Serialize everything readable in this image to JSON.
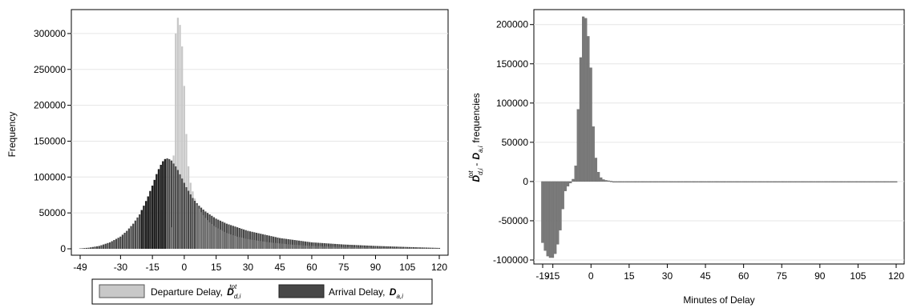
{
  "chart_data": [
    {
      "type": "bar",
      "subtype": "overlapping-histogram",
      "title": "",
      "xlabel": "",
      "ylabel": "Frequency",
      "xlim": [
        -49,
        120
      ],
      "ylim": [
        0,
        330000
      ],
      "x_ticks": [
        "-49",
        "-30",
        "-15",
        "0",
        "15",
        "30",
        "45",
        "60",
        "75",
        "90",
        "105",
        "120"
      ],
      "y_ticks": [
        "0",
        "50000",
        "100000",
        "150000",
        "200000",
        "250000",
        "300000"
      ],
      "grid": "horizontal",
      "legend_placement": "bottom",
      "series": [
        {
          "name": "Departure Delay, D",
          "symbol_base": "D",
          "symbol_sub": "d,i",
          "symbol_sup": "tot",
          "color": "#c8c8c8",
          "x": [
            -19,
            -18,
            -17,
            -16,
            -15,
            -14,
            -13,
            -12,
            -11,
            -10,
            -9,
            -8,
            -7,
            -6,
            -5,
            -4,
            -3,
            -2,
            -1,
            0,
            1,
            2,
            3,
            4,
            5,
            6,
            7,
            8,
            9,
            10,
            11,
            12,
            13,
            14,
            15,
            20,
            25,
            30,
            40,
            50,
            60,
            75,
            90,
            105,
            120
          ],
          "values": [
            0,
            0,
            0,
            0,
            0,
            0,
            0,
            0,
            0,
            0,
            0,
            0,
            0,
            30000,
            130000,
            300000,
            322000,
            312000,
            282000,
            227000,
            160000,
            115000,
            92000,
            80000,
            70000,
            62000,
            56000,
            51000,
            47000,
            43000,
            40000,
            37000,
            34500,
            32000,
            30000,
            22000,
            17000,
            13500,
            9000,
            6000,
            4000,
            2500,
            1500,
            800,
            300
          ]
        },
        {
          "name": "Arrival Delay, D",
          "symbol_base": "D",
          "symbol_sub": "a,i",
          "symbol_sup": "",
          "color": "#474747",
          "x": [
            -49,
            -45,
            -40,
            -35,
            -30,
            -27,
            -24,
            -21,
            -19,
            -17,
            -15,
            -14,
            -13,
            -12,
            -11,
            -10,
            -9,
            -8,
            -7,
            -6,
            -5,
            -4,
            -3,
            -2,
            -1,
            0,
            1,
            2,
            3,
            4,
            5,
            7,
            10,
            15,
            20,
            30,
            45,
            60,
            75,
            90,
            105,
            120
          ],
          "values": [
            500,
            1500,
            4000,
            9000,
            17000,
            25000,
            35000,
            48000,
            60000,
            73000,
            88000,
            96000,
            104000,
            111000,
            117000,
            122000,
            125000,
            126000,
            125000,
            123000,
            119000,
            115000,
            110000,
            104000,
            98000,
            92000,
            86000,
            81000,
            76000,
            71000,
            67000,
            60000,
            52000,
            42000,
            35000,
            25000,
            15000,
            9000,
            6000,
            4000,
            2500,
            1200
          ]
        }
      ]
    },
    {
      "type": "bar",
      "title": "",
      "xlabel": "Minutes of Delay",
      "ylabel": "frequencies",
      "ylabel_symbols": {
        "first": {
          "base": "D",
          "sub": "d,i",
          "sup": "tot"
        },
        "second": {
          "base": "D",
          "sub": "a,i",
          "sup": ""
        },
        "operator": "-"
      },
      "xlim": [
        -19,
        120
      ],
      "ylim": [
        -100000,
        215000
      ],
      "x_ticks": [
        "-19",
        "-15",
        "0",
        "15",
        "30",
        "45",
        "60",
        "75",
        "90",
        "105",
        "120"
      ],
      "y_ticks": [
        "-100000",
        "-50000",
        "0",
        "50000",
        "100000",
        "150000",
        "200000"
      ],
      "grid": "horizontal",
      "series": [
        {
          "name": "",
          "color": "#7a7a7a",
          "x": [
            -19,
            -18,
            -17,
            -16,
            -15,
            -14,
            -13,
            -12,
            -11,
            -10,
            -9,
            -8,
            -7,
            -6,
            -5,
            -4,
            -3,
            -2,
            -1,
            0,
            1,
            2,
            3,
            4,
            5,
            6,
            7,
            8,
            10,
            15,
            20,
            30,
            45,
            60,
            75,
            90,
            105,
            120
          ],
          "values": [
            -78000,
            -88000,
            -95000,
            -97000,
            -97000,
            -92000,
            -80000,
            -62000,
            -35000,
            -12000,
            -6000,
            -2000,
            3000,
            20000,
            92000,
            158000,
            210000,
            208000,
            185000,
            145000,
            70000,
            30000,
            12000,
            5000,
            2500,
            1500,
            1000,
            500,
            -500,
            -800,
            -600,
            -500,
            -400,
            -300,
            -300,
            -200,
            -200,
            -200
          ]
        }
      ]
    }
  ]
}
